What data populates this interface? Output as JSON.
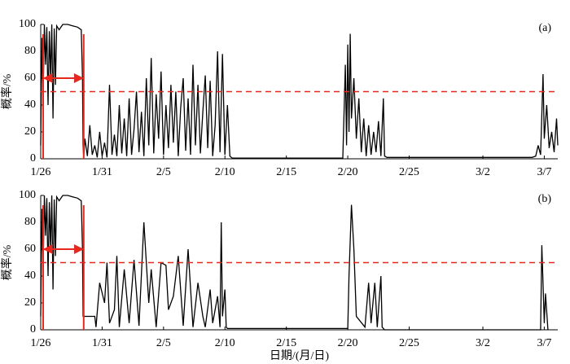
{
  "chart_data": [
    {
      "type": "line",
      "label": "(a)",
      "ylabel": "概率/%",
      "threshold": 50,
      "window": [
        0.2,
        3.5
      ],
      "arrow_y": 60,
      "xlim": [
        0,
        42.1
      ],
      "ylim": [
        0,
        100
      ],
      "yticks": [
        0,
        20,
        40,
        60,
        80,
        100
      ],
      "xticks": [
        {
          "value": 0,
          "label": "1/26"
        },
        {
          "value": 5,
          "label": "1/31"
        },
        {
          "value": 10,
          "label": "2/5"
        },
        {
          "value": 15,
          "label": "2/10"
        },
        {
          "value": 20,
          "label": "2/15"
        },
        {
          "value": 25,
          "label": "2/20"
        },
        {
          "value": 30,
          "label": "2/25"
        },
        {
          "value": 36,
          "label": "3/2"
        },
        {
          "value": 41,
          "label": "3/7"
        }
      ],
      "color": "#000000",
      "x": [
        0,
        0.1,
        0.2,
        0.3,
        0.4,
        0.5,
        0.6,
        0.7,
        0.8,
        0.9,
        1.0,
        1.1,
        1.2,
        1.3,
        1.5,
        1.8,
        2.2,
        2.6,
        3.0,
        3.3,
        3.4,
        3.45,
        3.5,
        3.6,
        3.8,
        4.0,
        4.2,
        4.4,
        4.6,
        4.8,
        5.0,
        5.2,
        5.4,
        5.6,
        5.8,
        6.0,
        6.2,
        6.4,
        6.6,
        6.8,
        7.0,
        7.2,
        7.4,
        7.6,
        7.8,
        8.0,
        8.2,
        8.4,
        8.6,
        8.8,
        9.0,
        9.2,
        9.4,
        9.6,
        9.8,
        10.0,
        10.2,
        10.4,
        10.6,
        10.8,
        11.0,
        11.2,
        11.4,
        11.6,
        11.8,
        12.0,
        12.2,
        12.4,
        12.6,
        12.8,
        13.0,
        13.2,
        13.4,
        13.6,
        13.8,
        14.0,
        14.2,
        14.4,
        14.6,
        14.8,
        15.0,
        15.2,
        15.4,
        15.6,
        24.6,
        24.8,
        24.9,
        25.0,
        25.1,
        25.2,
        25.3,
        25.5,
        25.7,
        25.9,
        26.1,
        26.3,
        26.5,
        26.7,
        26.9,
        27.1,
        27.3,
        27.5,
        27.7,
        27.9,
        28.0,
        28.2,
        40.0,
        40.3,
        40.5,
        40.7,
        40.9,
        41.0,
        41.2,
        41.4,
        41.6,
        41.8,
        42.0,
        42.1
      ],
      "values": [
        10,
        90,
        45,
        100,
        70,
        98,
        40,
        95,
        60,
        100,
        30,
        97,
        55,
        99,
        96,
        100,
        100,
        99,
        98,
        96,
        60,
        10,
        1,
        15,
        2,
        25,
        3,
        10,
        1,
        20,
        2,
        12,
        1,
        55,
        3,
        18,
        2,
        40,
        4,
        30,
        2,
        45,
        3,
        22,
        50,
        5,
        35,
        2,
        60,
        10,
        75,
        4,
        48,
        15,
        65,
        3,
        40,
        8,
        55,
        12,
        50,
        2,
        38,
        60,
        6,
        45,
        3,
        70,
        10,
        55,
        4,
        35,
        62,
        8,
        58,
        2,
        25,
        80,
        5,
        78,
        3,
        40,
        2,
        0.5,
        0.5,
        70,
        10,
        85,
        20,
        93,
        30,
        60,
        15,
        45,
        5,
        30,
        2,
        25,
        3,
        20,
        5,
        28,
        2,
        45,
        2,
        1,
        1,
        2,
        10,
        3,
        63,
        15,
        40,
        8,
        20,
        5,
        30,
        10
      ]
    },
    {
      "type": "line",
      "label": "(b)",
      "ylabel": "概率/%",
      "xlabel": "日期/(月/日)",
      "threshold": 50,
      "window": [
        0.2,
        3.5
      ],
      "arrow_y": 60,
      "xlim": [
        0,
        42.1
      ],
      "ylim": [
        0,
        100
      ],
      "yticks": [
        0,
        20,
        40,
        60,
        80,
        100
      ],
      "xticks": [
        {
          "value": 0,
          "label": "1/26"
        },
        {
          "value": 5,
          "label": "1/31"
        },
        {
          "value": 10,
          "label": "2/5"
        },
        {
          "value": 15,
          "label": "2/10"
        },
        {
          "value": 20,
          "label": "2/15"
        },
        {
          "value": 25,
          "label": "2/20"
        },
        {
          "value": 30,
          "label": "2/25"
        },
        {
          "value": 36,
          "label": "3/2"
        },
        {
          "value": 41,
          "label": "3/7"
        }
      ],
      "color": "#000000",
      "x": [
        0,
        0.1,
        0.2,
        0.3,
        0.4,
        0.5,
        0.6,
        0.7,
        0.8,
        0.9,
        1.0,
        1.1,
        1.2,
        1.3,
        1.5,
        1.8,
        2.2,
        2.6,
        3.0,
        3.3,
        3.4,
        3.45,
        3.5,
        4.4,
        4.5,
        4.8,
        5.2,
        5.4,
        5.6,
        6.0,
        6.2,
        6.4,
        6.8,
        7.2,
        7.6,
        8.0,
        8.4,
        8.8,
        9.0,
        9.4,
        9.8,
        10.2,
        10.4,
        10.8,
        11.2,
        11.6,
        12.0,
        12.4,
        12.8,
        13.2,
        13.4,
        13.8,
        14.0,
        14.4,
        14.6,
        14.7,
        14.8,
        15.0,
        15.1,
        15.2,
        25.0,
        25.1,
        25.3,
        25.5,
        25.7,
        26.4,
        26.7,
        26.9,
        27.2,
        27.4,
        27.7,
        27.8,
        28.0,
        40.7,
        40.8,
        41.0,
        41.1,
        41.3
      ],
      "values": [
        10,
        90,
        45,
        100,
        70,
        98,
        40,
        95,
        60,
        100,
        30,
        97,
        55,
        99,
        96,
        100,
        100,
        99,
        98,
        96,
        60,
        10,
        10,
        10,
        2,
        35,
        20,
        50,
        5,
        15,
        55,
        2,
        45,
        5,
        52,
        3,
        80,
        20,
        45,
        2,
        50,
        48,
        15,
        25,
        55,
        3,
        60,
        2,
        35,
        10,
        2,
        30,
        5,
        25,
        2,
        80,
        10,
        30,
        2,
        1,
        1,
        40,
        93,
        60,
        10,
        2,
        35,
        5,
        35,
        2,
        40,
        2,
        0,
        0,
        63,
        5,
        27,
        0
      ]
    }
  ]
}
